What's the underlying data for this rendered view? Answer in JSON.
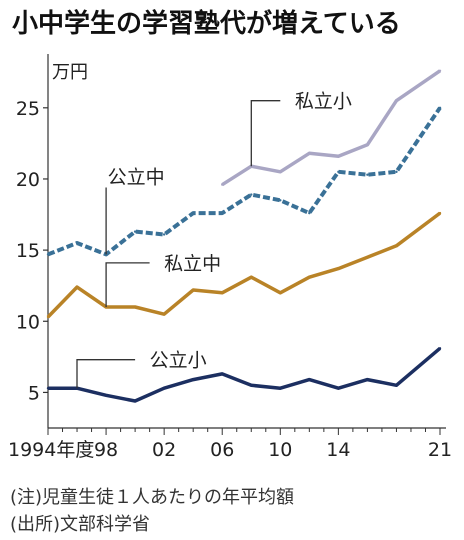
{
  "chart_data": {
    "type": "line",
    "title": "小中学生の学習塾代が増えている",
    "unit": "万円",
    "ylim": [
      2.5,
      28.5
    ],
    "yticks": [
      5,
      10,
      15,
      20,
      25
    ],
    "x_range": [
      1994,
      2021
    ],
    "xticks": [
      {
        "value": 1994,
        "label": "1994年度"
      },
      {
        "value": 1998,
        "label": "98"
      },
      {
        "value": 2002,
        "label": "02"
      },
      {
        "value": 2006,
        "label": "06"
      },
      {
        "value": 2010,
        "label": "10"
      },
      {
        "value": 2014,
        "label": "14"
      },
      {
        "value": 2021,
        "label": "21"
      }
    ],
    "grid": false,
    "series": [
      {
        "name": "私立小",
        "color": "#a9a6c4",
        "dashed": false,
        "x": [
          2006,
          2008,
          2010,
          2012,
          2014,
          2016,
          2018,
          2021
        ],
        "values": [
          19.6,
          20.9,
          20.5,
          21.8,
          21.6,
          22.4,
          25.5,
          27.6
        ]
      },
      {
        "name": "公立中",
        "color": "#3a7197",
        "dashed": true,
        "x": [
          1994,
          1996,
          1998,
          2000,
          2002,
          2004,
          2006,
          2008,
          2010,
          2012,
          2014,
          2016,
          2018,
          2021
        ],
        "values": [
          14.7,
          15.5,
          14.7,
          16.3,
          16.1,
          17.6,
          17.6,
          18.9,
          18.5,
          17.6,
          20.5,
          20.3,
          20.5,
          25.0
        ]
      },
      {
        "name": "私立中",
        "color": "#b98327",
        "dashed": false,
        "x": [
          1994,
          1996,
          1998,
          2000,
          2002,
          2004,
          2006,
          2008,
          2010,
          2012,
          2014,
          2016,
          2018,
          2021
        ],
        "values": [
          10.3,
          12.4,
          11.0,
          11.0,
          10.5,
          12.2,
          12.0,
          13.1,
          12.0,
          13.1,
          13.7,
          14.5,
          15.3,
          17.6
        ]
      },
      {
        "name": "公立小",
        "color": "#1c2f61",
        "dashed": false,
        "x": [
          1994,
          1996,
          1998,
          2000,
          2002,
          2004,
          2006,
          2008,
          2010,
          2012,
          2014,
          2016,
          2018,
          2021
        ],
        "values": [
          5.3,
          5.3,
          4.8,
          4.4,
          5.3,
          5.9,
          6.3,
          5.5,
          5.3,
          5.9,
          5.3,
          5.9,
          5.5,
          8.1
        ]
      }
    ],
    "annotations": [
      "(注)児童生徒１人あたりの年平均額",
      "(出所)文部科学省"
    ]
  }
}
